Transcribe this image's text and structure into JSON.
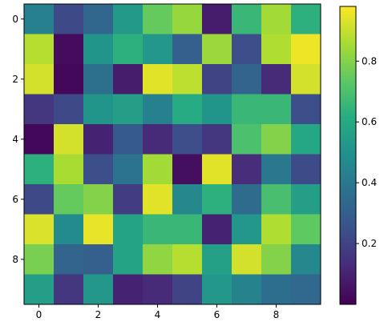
{
  "chart_data": {
    "type": "heatmap",
    "title": "",
    "xlabel": "",
    "ylabel": "",
    "colormap": "viridis",
    "vmin": 0.0,
    "vmax": 0.98,
    "grid": false,
    "rows": [
      0,
      1,
      2,
      3,
      4,
      5,
      6,
      7,
      8,
      9
    ],
    "cols": [
      0,
      1,
      2,
      3,
      4,
      5,
      6,
      7,
      8,
      9
    ],
    "x_ticks": [
      "0",
      "2",
      "4",
      "6",
      "8"
    ],
    "x_tick_values": [
      0,
      2,
      4,
      6,
      8
    ],
    "y_ticks": [
      "0",
      "2",
      "4",
      "6",
      "8"
    ],
    "y_tick_values": [
      0,
      2,
      4,
      6,
      8
    ],
    "colorbar": {
      "ticks": [
        "0.2",
        "0.4",
        "0.6",
        "0.8"
      ],
      "tick_values": [
        0.2,
        0.4,
        0.6,
        0.8
      ]
    },
    "values": [
      [
        0.43,
        0.22,
        0.33,
        0.53,
        0.75,
        0.83,
        0.08,
        0.66,
        0.85,
        0.63
      ],
      [
        0.88,
        0.03,
        0.51,
        0.63,
        0.52,
        0.3,
        0.84,
        0.24,
        0.87,
        0.96
      ],
      [
        0.92,
        0.02,
        0.37,
        0.08,
        0.94,
        0.89,
        0.2,
        0.32,
        0.12,
        0.92
      ],
      [
        0.16,
        0.22,
        0.51,
        0.55,
        0.43,
        0.61,
        0.51,
        0.66,
        0.66,
        0.24
      ],
      [
        0.02,
        0.92,
        0.1,
        0.28,
        0.12,
        0.24,
        0.16,
        0.7,
        0.8,
        0.59
      ],
      [
        0.63,
        0.86,
        0.24,
        0.38,
        0.85,
        0.04,
        0.94,
        0.13,
        0.4,
        0.23
      ],
      [
        0.22,
        0.75,
        0.8,
        0.18,
        0.94,
        0.46,
        0.63,
        0.35,
        0.69,
        0.55
      ],
      [
        0.93,
        0.47,
        0.95,
        0.58,
        0.66,
        0.66,
        0.1,
        0.52,
        0.87,
        0.74
      ],
      [
        0.78,
        0.32,
        0.3,
        0.58,
        0.82,
        0.88,
        0.56,
        0.92,
        0.8,
        0.46
      ],
      [
        0.55,
        0.16,
        0.52,
        0.1,
        0.12,
        0.2,
        0.52,
        0.44,
        0.36,
        0.34
      ]
    ]
  }
}
